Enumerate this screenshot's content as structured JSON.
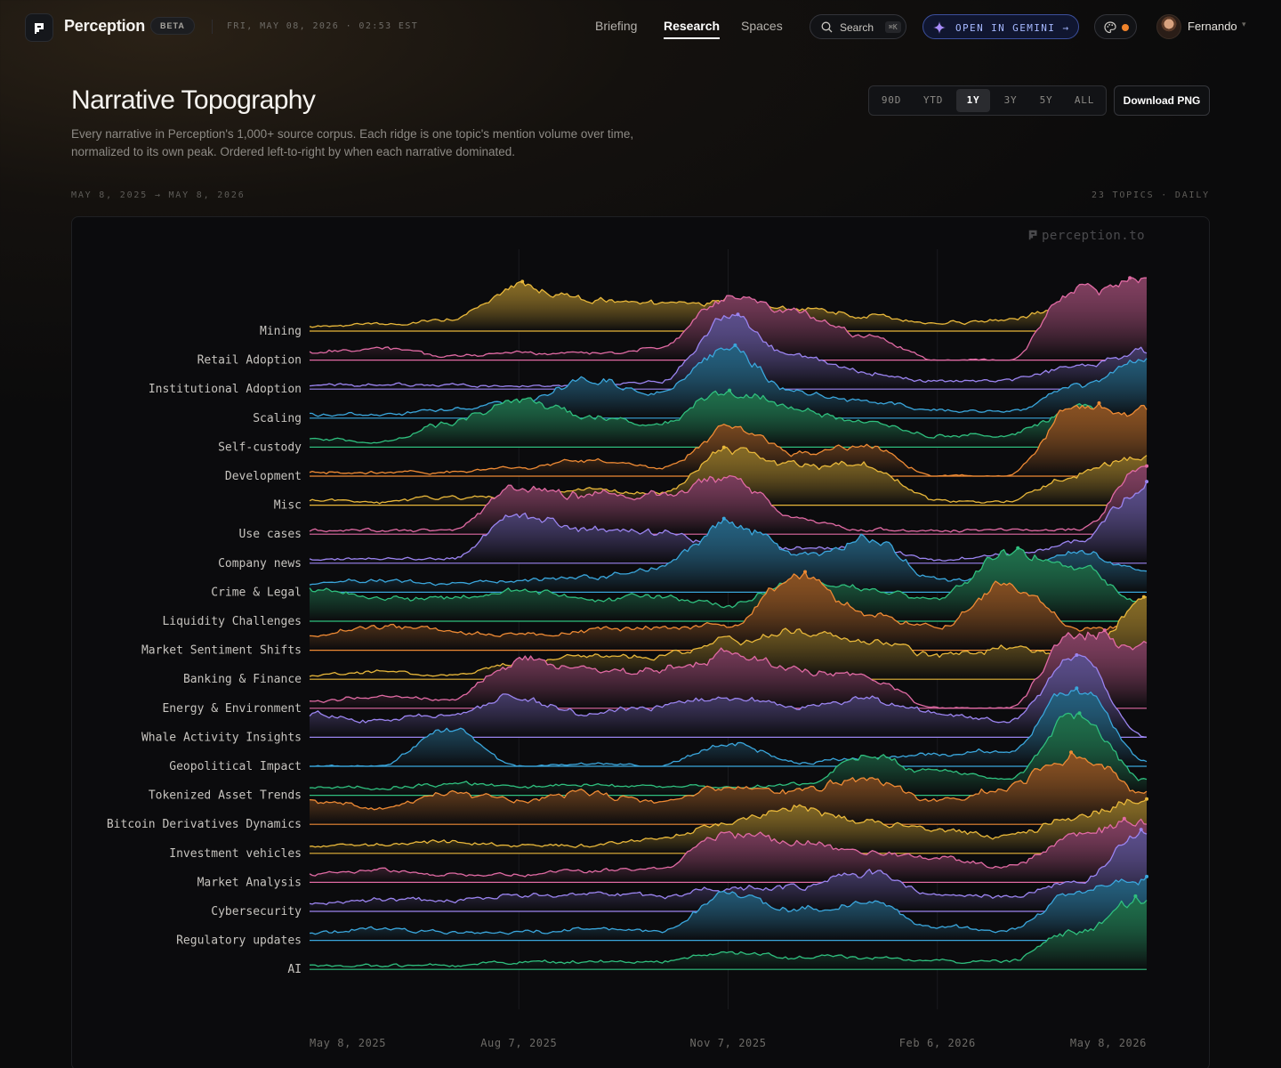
{
  "app": {
    "brand": "Perception",
    "badge": "BETA",
    "datetime": "FRI, MAY 08, 2026 · 02:53 EST",
    "nav": [
      {
        "label": "Briefing",
        "active": false
      },
      {
        "label": "Research",
        "active": true
      },
      {
        "label": "Spaces",
        "active": false
      }
    ],
    "search": {
      "label": "Search",
      "shortcut": "⌘K"
    },
    "gemini": {
      "label": "OPEN IN GEMINI →"
    },
    "user": {
      "name": "Fernando"
    },
    "status_dot_color": "#f0832b"
  },
  "page": {
    "title": "Narrative Topography",
    "subtitle": "Every narrative in Perception's 1,000+ source corpus. Each ridge is one topic's mention volume over time, normalized to its own peak. Ordered left-to-right by when each narrative dominated.",
    "range_options": [
      {
        "label": "90D",
        "active": false
      },
      {
        "label": "YTD",
        "active": false
      },
      {
        "label": "1Y",
        "active": true
      },
      {
        "label": "3Y",
        "active": false
      },
      {
        "label": "5Y",
        "active": false
      },
      {
        "label": "ALL",
        "active": false
      }
    ],
    "download_label": "Download PNG",
    "date_span": "MAY 8, 2025 → MAY 8, 2026",
    "topics_meta": "23 TOPICS · DAILY",
    "watermark": "perception.to"
  },
  "chart_data": {
    "type": "area",
    "variant": "ridgeline",
    "x_ticks": [
      "May 8, 2025",
      "Aug 7, 2025",
      "Nov 7, 2025",
      "Feb 6, 2026",
      "May 8, 2026"
    ],
    "value_scale": "normalized to each topic's own peak (0–1)",
    "sample_x": [
      "2025-05-08",
      "2025-06-07",
      "2025-07-07",
      "2025-08-06",
      "2025-09-05",
      "2025-10-05",
      "2025-11-04",
      "2025-12-04",
      "2026-01-03",
      "2026-02-02",
      "2026-03-04",
      "2026-04-03",
      "2026-05-08"
    ],
    "series": [
      {
        "name": "Mining",
        "color": "#e8b73a",
        "values": [
          0.05,
          0.1,
          0.15,
          0.6,
          0.4,
          0.35,
          0.4,
          0.3,
          0.2,
          0.1,
          0.15,
          0.35,
          0.5
        ]
      },
      {
        "name": "Retail Adoption",
        "color": "#e06aa3",
        "values": [
          0.1,
          0.15,
          0.05,
          0.1,
          0.1,
          0.15,
          0.8,
          0.6,
          0.3,
          0,
          0,
          0.9,
          1.0
        ]
      },
      {
        "name": "Institutional Adoption",
        "color": "#9b84f0",
        "values": [
          0.05,
          0.05,
          0.05,
          0.05,
          0.05,
          0.1,
          0.9,
          0.4,
          0.2,
          0.1,
          0.1,
          0.3,
          0.5
        ]
      },
      {
        "name": "Scaling",
        "color": "#3aa6dc",
        "values": [
          0.05,
          0.05,
          0.1,
          0.2,
          0.5,
          0.3,
          0.9,
          0.3,
          0.2,
          0.1,
          0.1,
          0.4,
          0.75
        ]
      },
      {
        "name": "Self-custody",
        "color": "#2fbf7e",
        "values": [
          0.1,
          0.05,
          0.3,
          0.6,
          0.4,
          0.3,
          0.7,
          0.5,
          0.3,
          0.15,
          0.15,
          0.5,
          0.3
        ]
      },
      {
        "name": "Development",
        "color": "#ee8a34",
        "values": [
          0.05,
          0.05,
          0.05,
          0.1,
          0.2,
          0.1,
          0.6,
          0.3,
          0.4,
          0,
          0,
          0.9,
          0.8
        ]
      },
      {
        "name": "Misc",
        "color": "#e8b73a",
        "values": [
          0.05,
          0.05,
          0.1,
          0.1,
          0.2,
          0.15,
          0.7,
          0.5,
          0.5,
          0.05,
          0.05,
          0.4,
          0.65
        ]
      },
      {
        "name": "Use cases",
        "color": "#e06aa3",
        "values": [
          0.05,
          0.05,
          0.05,
          0.6,
          0.5,
          0.5,
          0.7,
          0.2,
          0.05,
          0.05,
          0.05,
          0.05,
          0.9
        ]
      },
      {
        "name": "Company news",
        "color": "#9b84f0",
        "values": [
          0.05,
          0.05,
          0.05,
          0.6,
          0.45,
          0.4,
          0.2,
          0.2,
          0.2,
          0.05,
          0.1,
          0.3,
          1.0
        ]
      },
      {
        "name": "Crime & Legal",
        "color": "#3aa6dc",
        "values": [
          0.1,
          0.15,
          0.1,
          0.15,
          0.2,
          0.3,
          0.9,
          0.5,
          0.7,
          0.15,
          0.15,
          0.5,
          0.3
        ]
      },
      {
        "name": "Liquidity Challenges",
        "color": "#2fbf7e",
        "values": [
          0.4,
          0.3,
          0.3,
          0.4,
          0.3,
          0.3,
          0.2,
          0.5,
          0.4,
          0.3,
          0.9,
          0.7,
          0.2
        ]
      },
      {
        "name": "Market Sentiment Shifts",
        "color": "#ee8a34",
        "values": [
          0.2,
          0.3,
          0.25,
          0.2,
          0.25,
          0.3,
          0.3,
          1.0,
          0.5,
          0.3,
          0.8,
          0.3,
          0.3
        ]
      },
      {
        "name": "Banking & Finance",
        "color": "#e8b73a",
        "values": [
          0.05,
          0.1,
          0.05,
          0.2,
          0.3,
          0.3,
          0.5,
          0.6,
          0.5,
          0.3,
          0.4,
          0.3,
          1.0
        ]
      },
      {
        "name": "Energy & Environment",
        "color": "#e06aa3",
        "values": [
          0.1,
          0.15,
          0.1,
          0.6,
          0.5,
          0.5,
          0.7,
          0.5,
          0.4,
          0,
          0,
          1.0,
          0.8
        ]
      },
      {
        "name": "Whale Activity Insights",
        "color": "#9b84f0",
        "values": [
          0.3,
          0.2,
          0.3,
          0.5,
          0.3,
          0.4,
          0.5,
          0.4,
          0.5,
          0.3,
          0.2,
          1.0,
          0
        ]
      },
      {
        "name": "Geopolitical Impact",
        "color": "#3aa6dc",
        "values": [
          0,
          0,
          0.5,
          0,
          0.05,
          0,
          0.3,
          0.05,
          0.1,
          0.15,
          0.2,
          1.0,
          0.05
        ]
      },
      {
        "name": "Tokenized Asset Trends",
        "color": "#2fbf7e",
        "values": [
          0.1,
          0.1,
          0.15,
          0.1,
          0.15,
          0.1,
          0.1,
          0.15,
          0.5,
          0.3,
          0.2,
          1.0,
          0.2
        ]
      },
      {
        "name": "Bitcoin Derivatives Dynamics",
        "color": "#ee8a34",
        "values": [
          0.3,
          0.2,
          0.4,
          0.3,
          0.4,
          0.3,
          0.5,
          0.4,
          0.6,
          0.3,
          0.5,
          0.9,
          0.4
        ]
      },
      {
        "name": "Investment vehicles",
        "color": "#e8b73a",
        "values": [
          0.1,
          0.1,
          0.15,
          0.1,
          0.1,
          0.2,
          0.4,
          0.6,
          0.4,
          0.3,
          0.2,
          0.5,
          0.7
        ]
      },
      {
        "name": "Market Analysis",
        "color": "#e06aa3",
        "values": [
          0.1,
          0.15,
          0.1,
          0.1,
          0.15,
          0.2,
          0.6,
          0.5,
          0.4,
          0.3,
          0.2,
          0.6,
          0.8
        ]
      },
      {
        "name": "Cybersecurity",
        "color": "#9b84f0",
        "values": [
          0.1,
          0.15,
          0.15,
          0.2,
          0.2,
          0.2,
          0.3,
          0.3,
          0.5,
          0.2,
          0.2,
          0.4,
          1.0
        ]
      },
      {
        "name": "Regulatory updates",
        "color": "#3aa6dc",
        "values": [
          0.1,
          0.15,
          0.1,
          0.1,
          0.15,
          0.1,
          0.6,
          0.4,
          0.5,
          0.15,
          0.15,
          0.6,
          0.8
        ]
      },
      {
        "name": "AI",
        "color": "#2fbf7e",
        "values": [
          0.05,
          0.05,
          0.05,
          0.1,
          0.1,
          0.1,
          0.2,
          0.15,
          0.15,
          0.1,
          0.1,
          0.5,
          0.9
        ]
      }
    ]
  }
}
